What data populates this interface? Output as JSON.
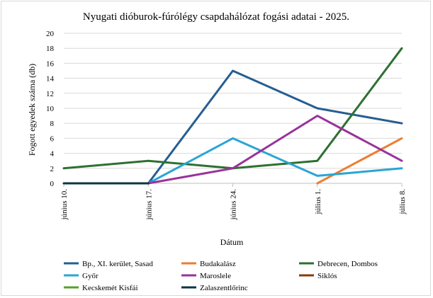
{
  "chart_data": {
    "type": "line",
    "title": "Nyugati dióburok-fúrólégy csapdahálózat fogási adatai - 2025.",
    "xlabel": "Dátum",
    "ylabel": "Fogott egyedek száma (db)",
    "categories": [
      "június 10.",
      "június 17.",
      "június 24.",
      "július 1.",
      "július 8."
    ],
    "ylim": [
      0,
      20
    ],
    "yticks": [
      0,
      2,
      4,
      6,
      8,
      10,
      12,
      14,
      16,
      18,
      20
    ],
    "grid": "horizontal",
    "legend_position": "bottom",
    "series": [
      {
        "name": "Bp., XI. kerület, Sasad",
        "color": "#255e91",
        "values": [
          null,
          0,
          15,
          10,
          8
        ]
      },
      {
        "name": "Budakalász",
        "color": "#ed7d31",
        "values": [
          null,
          null,
          null,
          0,
          6
        ]
      },
      {
        "name": "Debrecen, Dombos",
        "color": "#2e7031",
        "values": [
          2,
          3,
          2,
          3,
          18
        ]
      },
      {
        "name": "Győr",
        "color": "#2aa5d5",
        "values": [
          null,
          0,
          6,
          1,
          2
        ]
      },
      {
        "name": "Maroslele",
        "color": "#993399",
        "values": [
          null,
          0,
          2,
          9,
          3
        ]
      },
      {
        "name": "Siklós",
        "color": "#843c0c",
        "values": [
          null,
          null,
          null,
          null,
          null
        ]
      },
      {
        "name": "Kecskemét Kisfái",
        "color": "#5aa02c",
        "values": [
          null,
          null,
          null,
          null,
          null
        ]
      },
      {
        "name": "Zalaszentlőrinc",
        "color": "#0b3542",
        "values": [
          0,
          0,
          null,
          null,
          null
        ]
      }
    ]
  }
}
